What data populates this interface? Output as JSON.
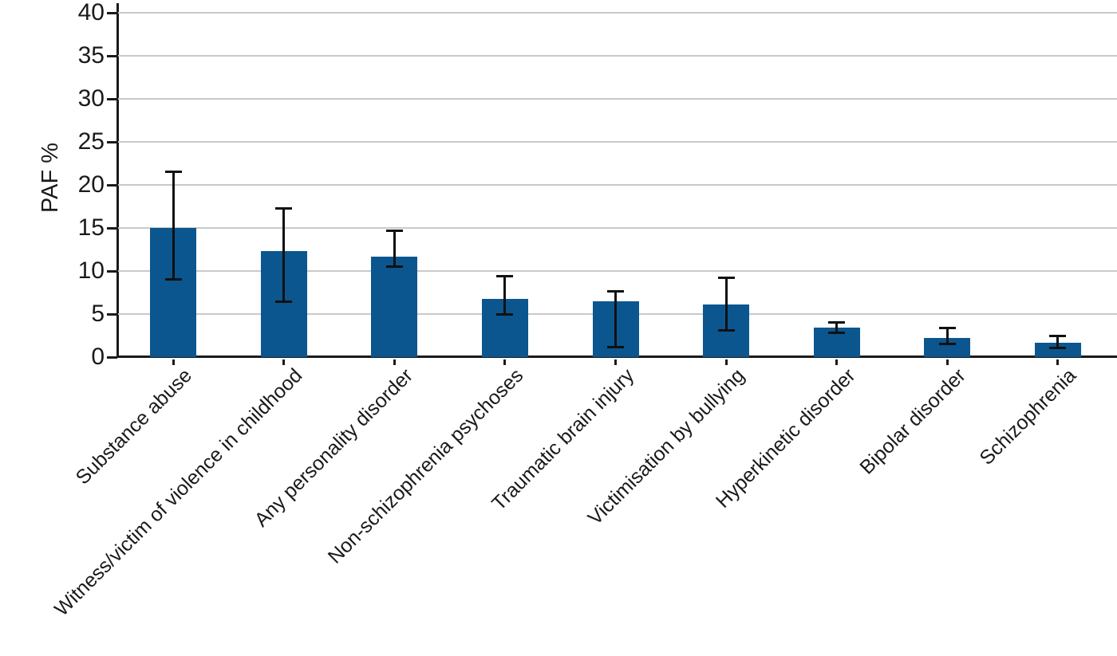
{
  "chart_data": {
    "type": "bar",
    "title": "",
    "xlabel": "",
    "ylabel": "PAF %",
    "ylim": [
      0,
      40
    ],
    "yticks": [
      0,
      5,
      10,
      15,
      20,
      25,
      30,
      35,
      40
    ],
    "grid": true,
    "legend": "none",
    "bar_color": "#0b568f",
    "error_bar_color": "#111111",
    "grid_color": "#c9c9c9",
    "axis_color": "#1a1a1a",
    "categories": [
      "Substance abuse",
      "Witness/victim of violence in childhood",
      "Any personality disorder",
      "Non-schizophrenia psychoses",
      "Traumatic brain injury",
      "Victimisation by bullying",
      "Hyperkinetic disorder",
      "Bipolar disorder",
      "Schizophrenia"
    ],
    "series": [
      {
        "name": "PAF %",
        "values": [
          15.0,
          12.3,
          11.7,
          6.8,
          6.5,
          6.1,
          3.4,
          2.2,
          1.7
        ],
        "error_low": [
          9.0,
          6.4,
          10.5,
          5.0,
          1.2,
          3.1,
          2.8,
          1.5,
          1.1
        ],
        "error_high": [
          21.5,
          17.3,
          14.7,
          9.4,
          7.6,
          9.2,
          4.0,
          3.4,
          2.5
        ]
      }
    ]
  }
}
